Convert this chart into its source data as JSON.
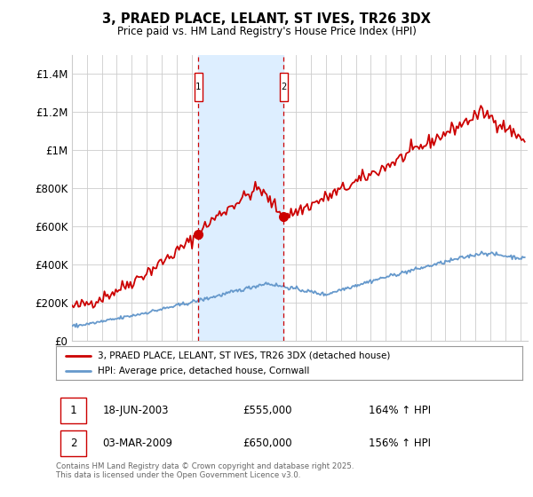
{
  "title": "3, PRAED PLACE, LELANT, ST IVES, TR26 3DX",
  "subtitle": "Price paid vs. HM Land Registry's House Price Index (HPI)",
  "footnote": "Contains HM Land Registry data © Crown copyright and database right 2025.\nThis data is licensed under the Open Government Licence v3.0.",
  "legend_line1": "3, PRAED PLACE, LELANT, ST IVES, TR26 3DX (detached house)",
  "legend_line2": "HPI: Average price, detached house, Cornwall",
  "property_color": "#cc0000",
  "hpi_color": "#6699cc",
  "sale1_date_str": "18-JUN-2003",
  "sale1_price": 555000,
  "sale1_hpi_pct": "164% ↑ HPI",
  "sale1_year": 2003.46,
  "sale2_date_str": "03-MAR-2009",
  "sale2_price": 650000,
  "sale2_hpi_pct": "156% ↑ HPI",
  "sale2_year": 2009.17,
  "ylim": [
    0,
    1500000
  ],
  "yticks": [
    0,
    200000,
    400000,
    600000,
    800000,
    1000000,
    1200000,
    1400000
  ],
  "ytick_labels": [
    "£0",
    "£200K",
    "£400K",
    "£600K",
    "£800K",
    "£1M",
    "£1.2M",
    "£1.4M"
  ],
  "background_color": "#ffffff",
  "grid_color": "#cccccc",
  "shade_color": "#ddeeff"
}
